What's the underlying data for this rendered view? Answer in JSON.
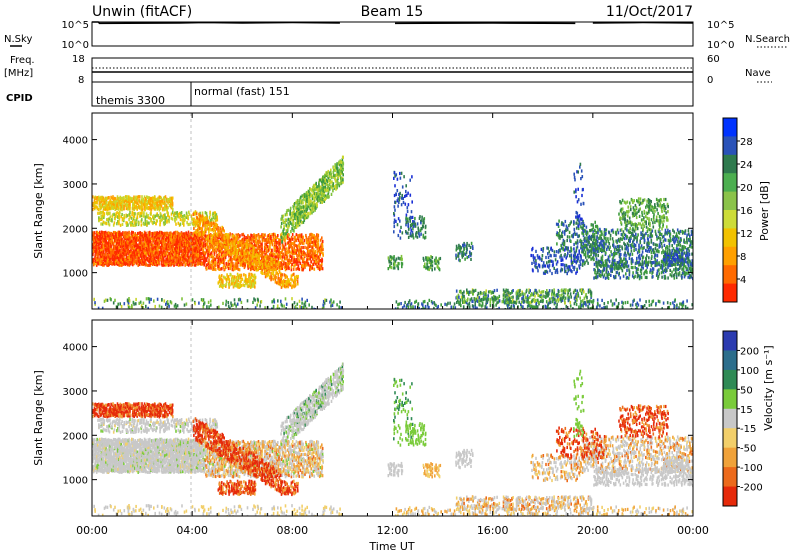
{
  "header": {
    "station": "Unwin (fitACF)",
    "beam": "Beam 15",
    "date": "11/Oct/2017"
  },
  "chart_data": [
    {
      "type": "line",
      "panel": "noise",
      "ylabel": "N.Sky",
      "right_label": "N.Search",
      "y_ticks_left": [
        "10^5",
        "10^0"
      ],
      "y_ticks_right": [
        "10^5",
        "10^0"
      ],
      "series": [
        {
          "values_desc": "high",
          "x": [
            0,
            0.25,
            0.3,
            3.5,
            4.5,
            6,
            8,
            9.9
          ],
          "y": [
            5.0,
            5.0,
            4.7,
            4.8,
            4.9,
            4.8,
            4.9,
            4.8
          ]
        },
        {
          "x": [
            12.1,
            16,
            19.3
          ],
          "y": [
            4.7,
            4.8,
            4.7
          ]
        },
        {
          "x": [
            20.0,
            22,
            24
          ],
          "y": [
            4.8,
            4.9,
            4.8
          ]
        }
      ]
    },
    {
      "type": "line",
      "panel": "frequency",
      "ylabel": "Freq.",
      "ylabel_unit": "[MHz]",
      "y_ticks_left": [
        "18",
        "8"
      ],
      "y_ticks_right": [
        "60",
        "0"
      ],
      "right_label": "Nave",
      "cpid_label": "CPID",
      "cpid_segments": [
        {
          "text": "themis 3300",
          "start": 0
        },
        {
          "text": "normal (fast) 151",
          "start": 4
        }
      ]
    },
    {
      "type": "heatmap",
      "panel": "power",
      "ylabel": "Slant Range [km]",
      "ylim": [
        180,
        4600
      ],
      "y_ticks": [
        1000,
        2000,
        3000,
        4000
      ],
      "colorbar_label": "Power [dB]",
      "colorbar_ticks": [
        4,
        8,
        12,
        16,
        20,
        24,
        28
      ],
      "colorbar_colors": [
        "#0033ff",
        "#2a52b8",
        "#2f7a4e",
        "#4caf50",
        "#8bc34a",
        "#cddc39",
        "#f2c200",
        "#ffa000",
        "#ff6a00",
        "#ff2a00"
      ]
    },
    {
      "type": "heatmap",
      "panel": "velocity",
      "ylabel": "Slant Range [km]",
      "ylim": [
        180,
        4600
      ],
      "y_ticks": [
        1000,
        2000,
        3000,
        4000
      ],
      "colorbar_label": "Velocity [m s⁻¹]",
      "colorbar_ticks": [
        200,
        100,
        50,
        15,
        -15,
        -50,
        -100,
        -200
      ],
      "colorbar_colors": [
        "#2b3bb0",
        "#2c6e8c",
        "#2f8a55",
        "#7acb3a",
        "#c8c8c8",
        "#f2cf6a",
        "#f0a23a",
        "#ec6a1c",
        "#e62a0a"
      ]
    }
  ],
  "xaxis": {
    "label": "Time UT",
    "ticks": [
      "00:00",
      "04:00",
      "08:00",
      "12:00",
      "16:00",
      "20:00",
      "00:00"
    ]
  }
}
